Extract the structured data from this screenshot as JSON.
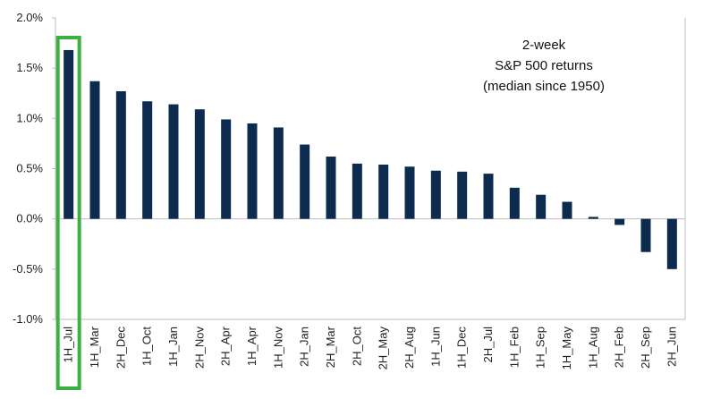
{
  "chart_data": {
    "type": "bar",
    "title_lines": [
      "2-week",
      "S&P 500 returns",
      "(median since 1950)"
    ],
    "categories": [
      "1H_Jul",
      "1H_Mar",
      "2H_Dec",
      "1H_Oct",
      "1H_Jan",
      "2H_Nov",
      "2H_Apr",
      "1H_Apr",
      "1H_Nov",
      "2H_Jan",
      "2H_Mar",
      "2H_Oct",
      "2H_May",
      "2H_Aug",
      "1H_Jun",
      "1H_Dec",
      "2H_Jul",
      "1H_Feb",
      "1H_Sep",
      "1H_May",
      "1H_Aug",
      "2H_Feb",
      "2H_Sep",
      "2H_Jun"
    ],
    "values": [
      1.68,
      1.37,
      1.27,
      1.17,
      1.14,
      1.09,
      0.99,
      0.95,
      0.91,
      0.74,
      0.62,
      0.55,
      0.54,
      0.52,
      0.48,
      0.47,
      0.45,
      0.31,
      0.24,
      0.17,
      0.02,
      -0.06,
      -0.33,
      -0.5
    ],
    "ylim": [
      -1.0,
      2.0
    ],
    "yticks": [
      "-1.0%",
      "-0.5%",
      "0.0%",
      "0.5%",
      "1.0%",
      "1.5%",
      "2.0%"
    ],
    "ytick_values": [
      -1.0,
      -0.5,
      0.0,
      0.5,
      1.0,
      1.5,
      2.0
    ],
    "highlight_index": 0,
    "colors": {
      "bar": "#0c2b4e",
      "highlight": "#3cb043",
      "axis": "#bdbdbd"
    }
  }
}
